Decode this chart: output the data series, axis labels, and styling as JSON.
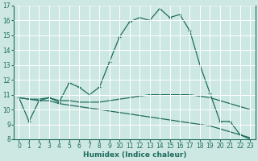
{
  "xlabel": "Humidex (Indice chaleur)",
  "xlim": [
    -0.5,
    23.5
  ],
  "ylim": [
    8,
    17
  ],
  "yticks": [
    8,
    9,
    10,
    11,
    12,
    13,
    14,
    15,
    16,
    17
  ],
  "xticks": [
    0,
    1,
    2,
    3,
    4,
    5,
    6,
    7,
    8,
    9,
    10,
    11,
    12,
    13,
    14,
    15,
    16,
    17,
    18,
    19,
    20,
    21,
    22,
    23
  ],
  "bg_color": "#cde8e2",
  "line_color": "#1e6b5e",
  "grid_color": "#ffffff",
  "line1_x": [
    0,
    1,
    2,
    3,
    4,
    5,
    6,
    7,
    8,
    9,
    10,
    11,
    12,
    13,
    14,
    15,
    16,
    17,
    18,
    19,
    20,
    21,
    22,
    23
  ],
  "line1_y": [
    10.8,
    9.2,
    10.6,
    10.8,
    10.5,
    11.8,
    11.5,
    11.0,
    11.5,
    13.2,
    14.9,
    15.9,
    16.2,
    16.0,
    16.8,
    16.2,
    16.4,
    15.3,
    13.0,
    11.1,
    9.2,
    9.2,
    8.3,
    8.0
  ],
  "line2_x": [
    0,
    1,
    2,
    3,
    4,
    5,
    6,
    7,
    8,
    9,
    10,
    11,
    12,
    13,
    14,
    15,
    16,
    17,
    18,
    19,
    20,
    21,
    22,
    23
  ],
  "line2_y": [
    10.8,
    10.7,
    10.7,
    10.8,
    10.6,
    10.6,
    10.5,
    10.5,
    10.5,
    10.6,
    10.7,
    10.8,
    10.9,
    11.0,
    11.0,
    11.0,
    11.0,
    11.0,
    10.9,
    10.8,
    10.6,
    10.4,
    10.2,
    10.0
  ],
  "line3_x": [
    0,
    1,
    2,
    3,
    4,
    5,
    6,
    7,
    8,
    9,
    10,
    11,
    12,
    13,
    14,
    15,
    16,
    17,
    18,
    19,
    20,
    21,
    22,
    23
  ],
  "line3_y": [
    10.8,
    10.7,
    10.6,
    10.6,
    10.4,
    10.3,
    10.2,
    10.1,
    10.0,
    9.9,
    9.8,
    9.7,
    9.6,
    9.5,
    9.4,
    9.3,
    9.2,
    9.1,
    9.0,
    8.9,
    8.7,
    8.5,
    8.3,
    8.1
  ]
}
